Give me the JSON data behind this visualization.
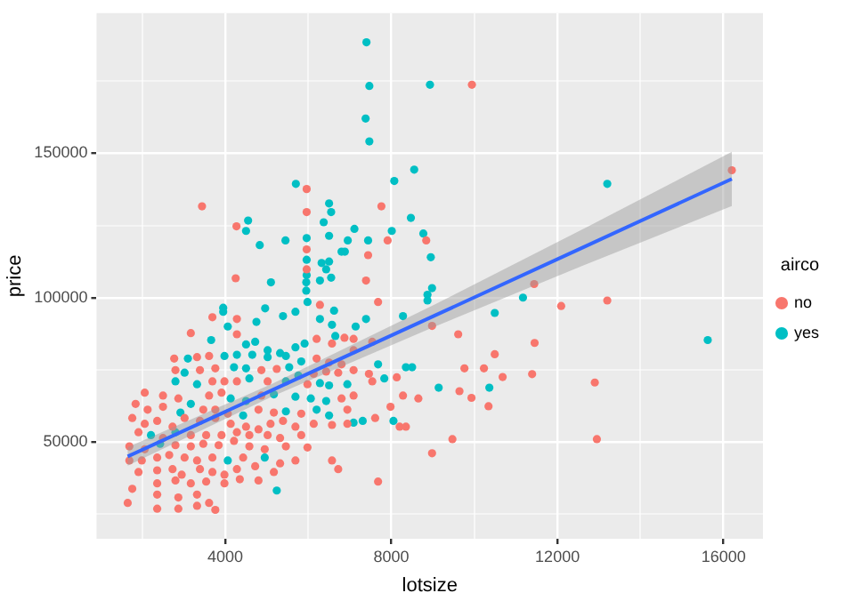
{
  "chart_data": {
    "type": "scatter",
    "xlabel": "lotsize",
    "ylabel": "price",
    "legend_title": "airco",
    "legend": "right",
    "grid": true,
    "xlim": [
      900,
      16950
    ],
    "ylim": [
      16500,
      198500
    ],
    "xticks": [
      {
        "value": 2000,
        "label": null
      },
      4000,
      {
        "value": 6000,
        "label": null
      },
      8000,
      {
        "value": 10000,
        "label": null
      },
      12000,
      {
        "value": 14000,
        "label": null
      },
      16000
    ],
    "yticks": [
      {
        "value": 25000,
        "label": null
      },
      50000,
      {
        "value": 75000,
        "label": null
      },
      100000,
      {
        "value": 125000,
        "label": null
      },
      150000,
      {
        "value": 175000,
        "label": null
      }
    ],
    "series": [
      {
        "name": "no",
        "color": "#f8766d",
        "marker": "circle",
        "x": [
          5960,
          3440,
          5960,
          7760,
          4270,
          5960,
          7910,
          8840,
          7440,
          5960,
          4250,
          7390,
          9940,
          16200,
          11440,
          12090,
          13200,
          8980,
          9610,
          11450,
          10490,
          9760,
          10230,
          10680,
          11390,
          12900,
          9640,
          9930,
          10340,
          9470,
          12950,
          8980,
          7680,
          6280,
          3690,
          4280,
          3170,
          4280,
          6200,
          6570,
          6870,
          7090,
          7540,
          2770,
          3320,
          3610,
          6200,
          6500,
          6800,
          7090,
          2800,
          3390,
          3760,
          4870,
          5240,
          6130,
          6430,
          6720,
          7090,
          7460,
          8130,
          3690,
          3980,
          4280,
          5020,
          5980,
          7540,
          8280,
          8650,
          2060,
          2500,
          2870,
          3610,
          3910,
          4870,
          6800,
          7090,
          7980,
          8200,
          8350,
          1840,
          2130,
          2500,
          3470,
          3760,
          4060,
          4800,
          5170,
          5830,
          6940,
          7610,
          1760,
          2060,
          2360,
          2730,
          3020,
          3390,
          3760,
          4130,
          4500,
          4800,
          5090,
          5390,
          5690,
          6130,
          6570,
          6940,
          1910,
          2500,
          3170,
          3540,
          3910,
          4280,
          4580,
          5020,
          5320,
          5830,
          1690,
          2060,
          2800,
          3170,
          3470,
          3840,
          4210,
          4580,
          4950,
          5460,
          5980,
          1690,
          1990,
          2360,
          2650,
          3020,
          3320,
          3690,
          4430,
          5320,
          5690,
          6570,
          1910,
          2360,
          2730,
          2950,
          3390,
          3690,
          3980,
          4280,
          4720,
          5170,
          6720,
          1760,
          2360,
          2800,
          3170,
          3540,
          3980,
          4350,
          4800,
          7680,
          1650,
          2360,
          2870,
          3320,
          3610,
          2360,
          2870,
          3760,
          3320
        ],
        "values": [
          137600,
          131600,
          129600,
          131600,
          124700,
          116700,
          119800,
          119800,
          114700,
          109800,
          106700,
          105900,
          173700,
          144100,
          104700,
          97100,
          99000,
          90200,
          87300,
          84300,
          80400,
          75500,
          75500,
          72500,
          73500,
          70600,
          67600,
          65300,
          62400,
          51000,
          51000,
          46100,
          98500,
          97500,
          93200,
          92600,
          87700,
          87300,
          85700,
          84100,
          86100,
          85700,
          84700,
          78900,
          79400,
          79800,
          78900,
          77500,
          76900,
          81800,
          74900,
          74900,
          75500,
          74900,
          75300,
          73600,
          74400,
          74000,
          74900,
          73600,
          72400,
          71000,
          71000,
          71000,
          71000,
          70000,
          71000,
          66100,
          65100,
          67100,
          66100,
          65100,
          66100,
          67100,
          66100,
          65100,
          66100,
          62200,
          55300,
          55300,
          63200,
          61200,
          62200,
          61200,
          61200,
          59800,
          61200,
          60200,
          59800,
          61200,
          58300,
          58300,
          56300,
          57300,
          55300,
          58300,
          57300,
          58300,
          56300,
          55300,
          54400,
          56300,
          57300,
          55300,
          56300,
          55900,
          56300,
          53400,
          51400,
          52400,
          52400,
          52400,
          53400,
          52400,
          52400,
          51400,
          52400,
          48500,
          47500,
          48900,
          48500,
          49400,
          48900,
          50400,
          48500,
          47500,
          48500,
          48100,
          43600,
          43600,
          44600,
          45500,
          44600,
          43600,
          44600,
          44600,
          42600,
          43600,
          43600,
          39600,
          40200,
          40600,
          38700,
          40600,
          39600,
          38700,
          40600,
          41600,
          39600,
          40600,
          33800,
          35700,
          36700,
          35700,
          36300,
          35700,
          37100,
          36700,
          36300,
          28900,
          31800,
          30800,
          31800,
          28900,
          26900,
          26900,
          26500,
          27900
        ]
      },
      {
        "name": "yes",
        "color": "#00bfc4",
        "marker": "circle",
        "x": [
          7400,
          7470,
          8930,
          7380,
          7470,
          5700,
          8550,
          8070,
          6500,
          6550,
          4550,
          4500,
          6370,
          7110,
          8470,
          8010,
          8770,
          4830,
          5450,
          5960,
          6500,
          6950,
          7440,
          6800,
          6880,
          8950,
          5960,
          5960,
          6320,
          6500,
          6430,
          6280,
          6550,
          5100,
          13200,
          8980,
          8870,
          8870,
          11170,
          10490,
          15620,
          9140,
          10360,
          5950,
          5950,
          5980,
          6620,
          3950,
          3950,
          4060,
          4750,
          4960,
          5390,
          5690,
          6280,
          6570,
          6650,
          7140,
          7390,
          8280,
          3660,
          4500,
          4720,
          5020,
          5320,
          5690,
          5910,
          3980,
          4280,
          4650,
          5020,
          5460,
          3100,
          5830,
          7680,
          8350,
          8500,
          3020,
          4210,
          4500,
          5540,
          5760,
          7830,
          2800,
          3320,
          4580,
          5460,
          6280,
          6500,
          6940,
          3170,
          4130,
          4500,
          5170,
          5690,
          6060,
          6430,
          8050,
          2920,
          4430,
          5460,
          6200,
          6500,
          7310,
          7090,
          2210,
          2800,
          2430,
          4060,
          4950,
          5240
        ],
        "values": [
          188400,
          173300,
          173700,
          162000,
          154100,
          139400,
          144300,
          140400,
          132600,
          129600,
          126700,
          123100,
          126100,
          123800,
          127600,
          123100,
          122200,
          118200,
          119800,
          120600,
          121400,
          119800,
          119800,
          115900,
          115900,
          114000,
          113100,
          107800,
          112000,
          112500,
          109800,
          105900,
          106900,
          105300,
          139400,
          103300,
          101000,
          99000,
          100000,
          94700,
          85300,
          68800,
          68800,
          105300,
          102400,
          98500,
          95500,
          96500,
          95100,
          90000,
          91600,
          96300,
          93600,
          95100,
          92600,
          90600,
          86700,
          90000,
          92600,
          93600,
          85300,
          83800,
          84700,
          81800,
          80800,
          82800,
          84100,
          79800,
          80200,
          80200,
          79400,
          79800,
          78900,
          77900,
          76900,
          75900,
          75900,
          74000,
          75900,
          75500,
          75900,
          73000,
          72000,
          71000,
          70000,
          72000,
          71000,
          70400,
          69600,
          70000,
          63200,
          65100,
          64200,
          66500,
          65700,
          65100,
          64200,
          57300,
          60200,
          59200,
          60600,
          61200,
          59200,
          57300,
          56700,
          52400,
          53400,
          49400,
          43600,
          44600,
          33200
        ]
      },
      {
        "type": "line",
        "color": "#3366ff",
        "marker": "none",
        "x": [
          1650,
          5150,
          9000,
          12600,
          16200
        ],
        "values": [
          45000,
          68100,
          93500,
          117300,
          141100
        ],
        "lower": [
          41800,
          65900,
          89700,
          111000,
          131700
        ],
        "upper": [
          48200,
          70300,
          97300,
          123600,
          150500
        ]
      }
    ]
  }
}
